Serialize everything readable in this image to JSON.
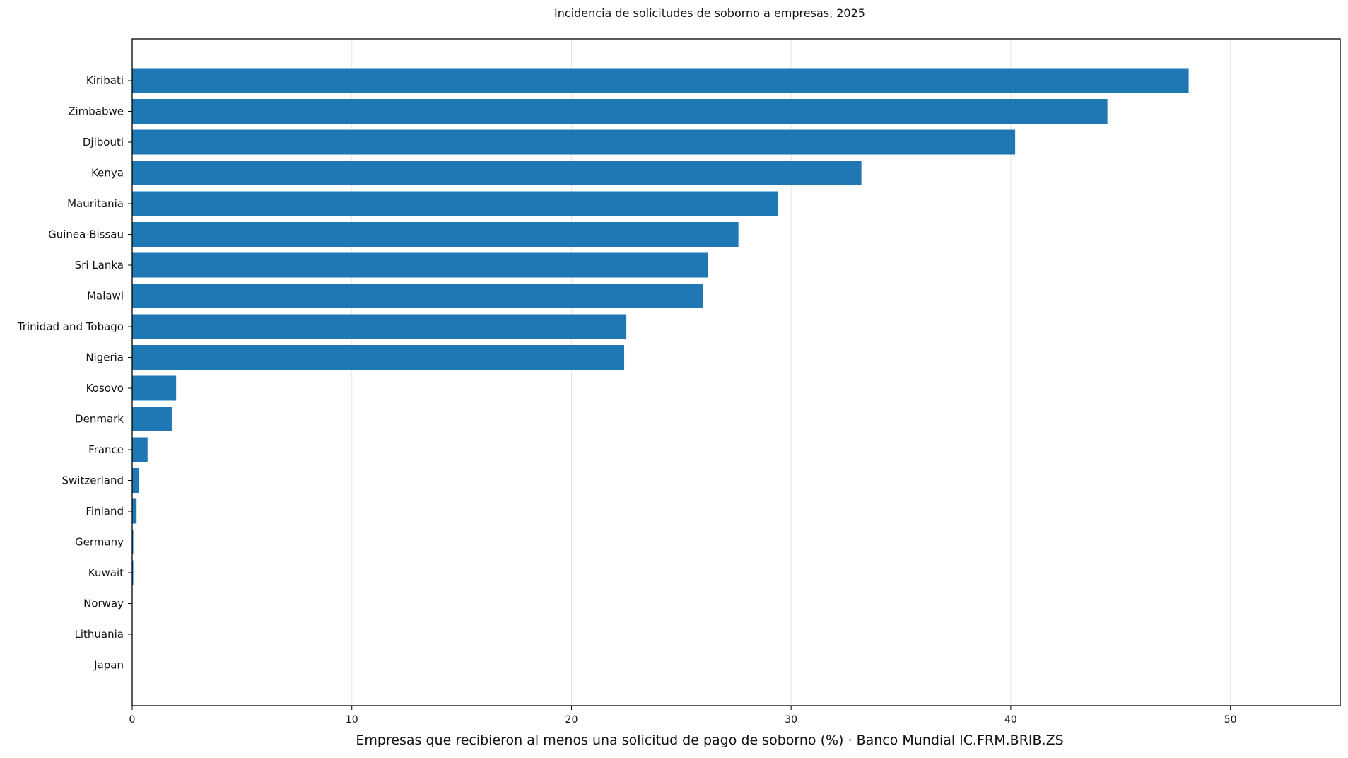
{
  "chart_data": {
    "type": "bar",
    "orientation": "horizontal",
    "title": "Incidencia de solicitudes de soborno a empresas, 2025",
    "xlabel": "Empresas que recibieron al menos una solicitud de pago de soborno (%) · Banco Mundial IC.FRM.BRIB.ZS",
    "ylabel": "",
    "xlim": [
      0,
      55
    ],
    "xticks": [
      0,
      10,
      20,
      30,
      40,
      50
    ],
    "grid": "vertical",
    "legend": "none",
    "bar_color": "#1f77b4",
    "categories": [
      "Kiribati",
      "Zimbabwe",
      "Djibouti",
      "Kenya",
      "Mauritania",
      "Guinea-Bissau",
      "Sri Lanka",
      "Malawi",
      "Trinidad and Tobago",
      "Nigeria",
      "Kosovo",
      "Denmark",
      "France",
      "Switzerland",
      "Finland",
      "Germany",
      "Kuwait",
      "Norway",
      "Lithuania",
      "Japan"
    ],
    "values": [
      48.1,
      44.4,
      40.2,
      33.2,
      29.4,
      27.6,
      26.2,
      26.0,
      22.5,
      22.4,
      2.0,
      1.8,
      0.7,
      0.3,
      0.2,
      0.05,
      0.05,
      0.0,
      0.0,
      0.0
    ]
  }
}
